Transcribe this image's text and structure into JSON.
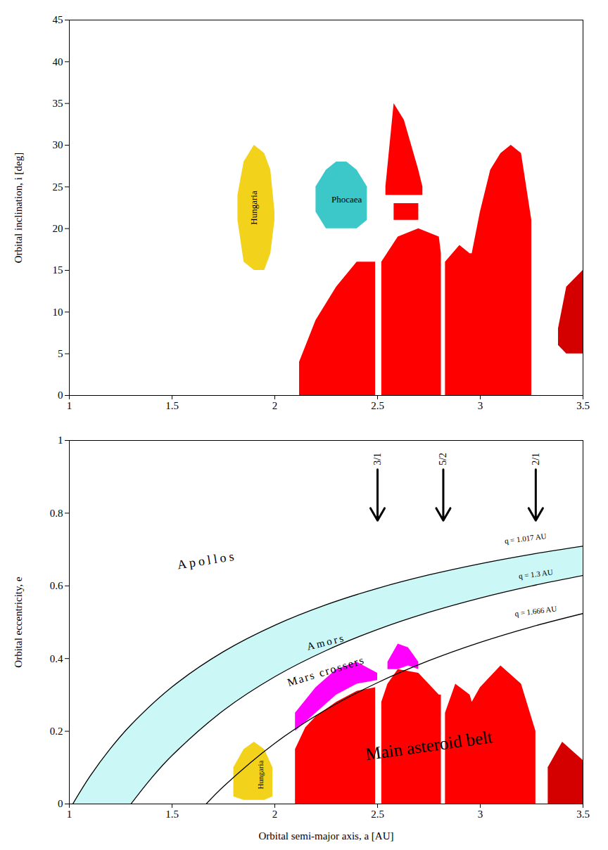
{
  "chart_data": [
    {
      "type": "scatter",
      "y_label": "Orbital inclination, i [deg]",
      "xlim": [
        1,
        3.5
      ],
      "xticks": [
        1,
        1.5,
        2,
        2.5,
        3,
        3.5
      ],
      "ylim": [
        0,
        45
      ],
      "yticks": [
        0,
        5,
        10,
        15,
        20,
        25,
        30,
        35,
        40,
        45
      ],
      "grid": false,
      "series": [
        {
          "type": "area",
          "color": "#f2d21b",
          "x": [
            1.82,
            1.85,
            1.9,
            1.95,
            1.98,
            2.0
          ],
          "lower": [
            21,
            16,
            15,
            15,
            17,
            21
          ],
          "upper": [
            24,
            28,
            30,
            29,
            27,
            22
          ]
        },
        {
          "type": "area",
          "color": "#3cc8c8",
          "x": [
            2.2,
            2.25,
            2.3,
            2.35,
            2.4,
            2.45
          ],
          "lower": [
            22,
            20,
            20,
            20,
            20,
            21
          ],
          "upper": [
            25,
            27,
            28,
            28,
            27,
            25
          ]
        },
        {
          "type": "area",
          "color": "#ff0000",
          "x": [
            2.12,
            2.2,
            2.3,
            2.4,
            2.49,
            2.5,
            2.52,
            2.6,
            2.7,
            2.8,
            2.81,
            2.82,
            2.83,
            2.9,
            2.95,
            2.96,
            3.0,
            3.05,
            3.1,
            3.15,
            3.2,
            3.25
          ],
          "upper": [
            4,
            9,
            13,
            16,
            16,
            null,
            16,
            19,
            20,
            19,
            17,
            null,
            16,
            18,
            17,
            17,
            22,
            27,
            29,
            30,
            29,
            21
          ]
        },
        {
          "type": "area",
          "color": "#ff0000",
          "x": [
            2.54,
            2.58,
            2.63,
            2.7,
            2.72
          ],
          "lower": [
            24,
            24,
            24,
            24,
            24
          ],
          "upper": [
            25,
            35,
            33,
            27,
            25
          ]
        },
        {
          "type": "area",
          "color": "#ff0000",
          "x": [
            2.58,
            2.7
          ],
          "lower": [
            21,
            21
          ],
          "upper": [
            23,
            23
          ]
        },
        {
          "type": "area",
          "color": "#d40000",
          "x": [
            3.38,
            3.42,
            3.5
          ],
          "lower": [
            6,
            5,
            5
          ],
          "upper": [
            8,
            13,
            15
          ]
        }
      ],
      "annotations": [
        {
          "text": "Hungaria",
          "x": 1.9,
          "y": 22.5
        },
        {
          "text": "Phocaea",
          "x": 2.35,
          "y": 23.5
        }
      ]
    },
    {
      "type": "scatter",
      "x_label": "Orbital semi-major axis, a [AU]",
      "y_label": "Orbital eccentricity, e",
      "xlim": [
        1,
        3.5
      ],
      "xticks": [
        1,
        1.5,
        2,
        2.5,
        3,
        3.5
      ],
      "ylim": [
        0,
        1
      ],
      "yticks": [
        0,
        0.2,
        0.4,
        0.6,
        0.8,
        1
      ],
      "grid": false,
      "series": [
        {
          "type": "area",
          "color": "#ccf7f7",
          "x": [
            1.017,
            1.1,
            1.2,
            1.3,
            1.5,
            1.75,
            2,
            2.25,
            2.5,
            2.75,
            3,
            3.25,
            3.5
          ],
          "lower": [
            0,
            0,
            0,
            0,
            0.1333,
            0.2571,
            0.35,
            0.4222,
            0.48,
            0.5273,
            0.5667,
            0.6,
            0.6286
          ],
          "upper": [
            0,
            0.0755,
            0.1525,
            0.2177,
            0.322,
            0.4189,
            0.4915,
            0.548,
            0.5932,
            0.6302,
            0.661,
            0.6871,
            0.7094
          ]
        },
        {
          "type": "area",
          "color": "#f2d21b",
          "x": [
            1.8,
            1.85,
            1.9,
            1.95,
            1.99
          ],
          "lower": [
            0.02,
            0.01,
            0.01,
            0.01,
            0.02
          ],
          "upper": [
            0.1,
            0.15,
            0.17,
            0.15,
            0.1
          ]
        },
        {
          "type": "area",
          "color": "#ff0000",
          "x": [
            2.1,
            2.15,
            2.2,
            2.3,
            2.4,
            2.49,
            2.5,
            2.52,
            2.55,
            2.6,
            2.7,
            2.8,
            2.81,
            2.82,
            2.83,
            2.88,
            2.95,
            2.96,
            3.0,
            3.1,
            3.2,
            3.27
          ],
          "upper": [
            0.15,
            0.21,
            0.24,
            0.28,
            0.31,
            0.32,
            null,
            0.28,
            0.33,
            0.37,
            0.36,
            0.3,
            0.3,
            null,
            0.25,
            0.33,
            0.3,
            0.28,
            0.32,
            0.38,
            0.33,
            0.2
          ]
        },
        {
          "type": "area",
          "color": "#d40000",
          "x": [
            3.33,
            3.4,
            3.5
          ],
          "upper": [
            0.1,
            0.17,
            0.12
          ]
        },
        {
          "type": "area",
          "color": "#ff00ff",
          "x": [
            2.1,
            2.2,
            2.3,
            2.4,
            2.5,
            2.52,
            2.55,
            2.6,
            2.65,
            2.7
          ],
          "lower": [
            0.2,
            0.25,
            0.3,
            0.33,
            0.34,
            null,
            0.37,
            0.37,
            0.38,
            0.37
          ],
          "upper": [
            0.25,
            0.32,
            0.37,
            0.39,
            0.36,
            null,
            0.39,
            0.44,
            0.43,
            0.39
          ]
        },
        {
          "type": "line",
          "color": "#000000",
          "x": [
            1.017,
            1.1,
            1.2,
            1.3,
            1.5,
            1.75,
            2,
            2.25,
            2.5,
            2.75,
            3,
            3.25,
            3.5
          ],
          "y": [
            0,
            0.0755,
            0.1525,
            0.2177,
            0.322,
            0.4189,
            0.4915,
            0.548,
            0.5932,
            0.6302,
            0.661,
            0.6871,
            0.7094
          ]
        },
        {
          "type": "line",
          "color": "#000000",
          "x": [
            1.3,
            1.4,
            1.5,
            1.75,
            2,
            2.25,
            2.5,
            2.75,
            3,
            3.25,
            3.5
          ],
          "y": [
            0,
            0.0714,
            0.1333,
            0.2571,
            0.35,
            0.4222,
            0.48,
            0.5273,
            0.5667,
            0.6,
            0.6286
          ]
        },
        {
          "type": "line",
          "color": "#000000",
          "x": [
            1.666,
            1.75,
            2,
            2.25,
            2.5,
            2.75,
            3,
            3.25,
            3.5
          ],
          "y": [
            0,
            0.048,
            0.167,
            0.2596,
            0.3336,
            0.3942,
            0.4447,
            0.4874,
            0.524
          ]
        }
      ],
      "resonances": [
        {
          "label": "3/1",
          "x": 2.5,
          "y_start": 0.92,
          "y_end": 0.78
        },
        {
          "label": "5/2",
          "x": 2.82,
          "y_start": 0.92,
          "y_end": 0.78
        },
        {
          "label": "2/1",
          "x": 3.27,
          "y_start": 0.92,
          "y_end": 0.78
        }
      ],
      "annotations": [
        {
          "text": "Apollos",
          "x": 1.67,
          "y": 0.67
        },
        {
          "text": "Amors",
          "x": 2.25,
          "y": 0.445
        },
        {
          "text": "Mars crossers",
          "x": 2.25,
          "y": 0.365
        },
        {
          "text": "Main asteroid belt",
          "x": 2.75,
          "y": 0.16
        },
        {
          "text": "Hungaria",
          "x": 1.93,
          "y": 0.08
        },
        {
          "text": "q = 1.017 AU",
          "x": 3.22,
          "y": 0.73
        },
        {
          "text": "q = 1.3 AU",
          "x": 3.27,
          "y": 0.632
        },
        {
          "text": "q = 1.666 AU",
          "x": 3.27,
          "y": 0.53
        }
      ]
    }
  ]
}
